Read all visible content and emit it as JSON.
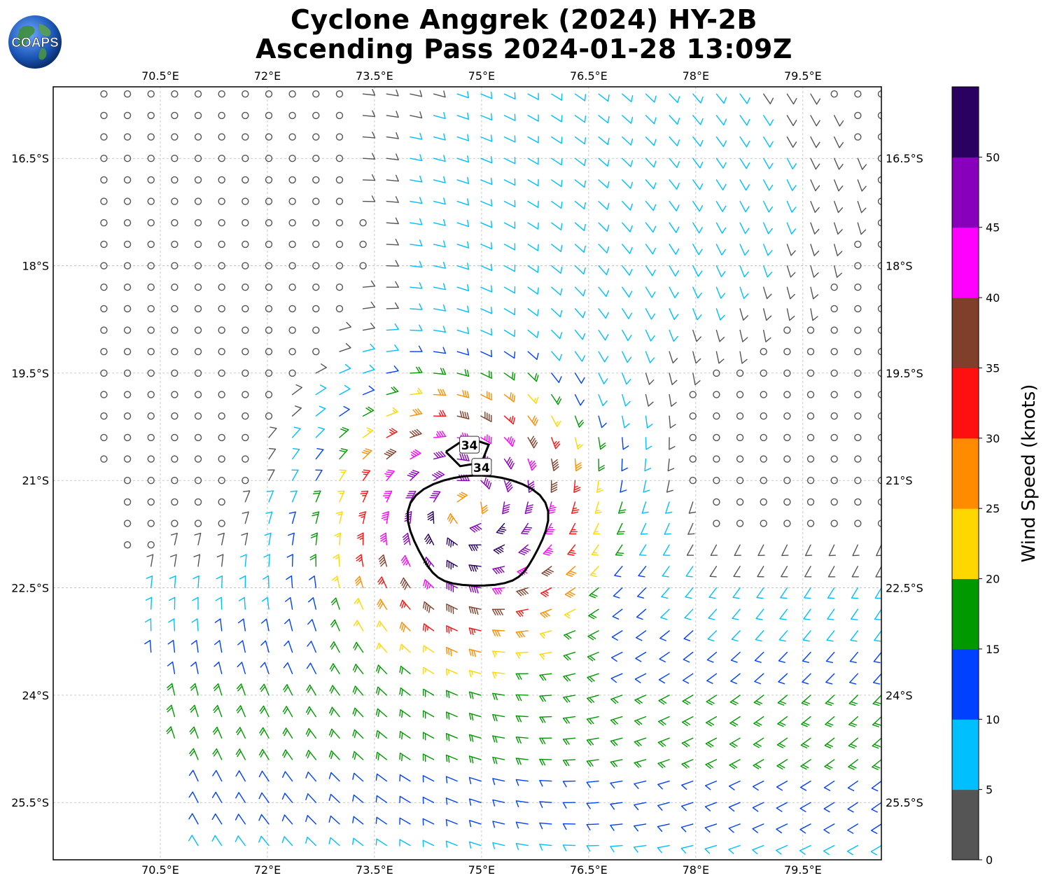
{
  "title": {
    "line1": "Cyclone Anggrek (2024) HY-2B",
    "line2": "Ascending Pass 2024-01-28 13:09Z"
  },
  "logo": {
    "text": "COAPS",
    "icon": "globe-logo"
  },
  "map": {
    "lon_ticks": [
      "70.5°E",
      "72°E",
      "73.5°E",
      "75°E",
      "76.5°E",
      "78°E",
      "79.5°E"
    ],
    "lon_values": [
      70.5,
      72,
      73.5,
      75,
      76.5,
      78,
      79.5
    ],
    "lat_ticks": [
      "16.5°S",
      "18°S",
      "19.5°S",
      "21°S",
      "22.5°S",
      "24°S",
      "25.5°S"
    ],
    "lat_values": [
      -16.5,
      -18,
      -19.5,
      -21,
      -22.5,
      -24,
      -25.5
    ],
    "lon_range": [
      69.0,
      80.6
    ],
    "lat_range": [
      -26.3,
      -15.5
    ],
    "center": {
      "lon": 74.8,
      "lat": -21.4
    },
    "contour_label": "34",
    "contour_value_kt": 34
  },
  "colorbar": {
    "label": "Wind Speed (knots)",
    "ticks": [
      "0",
      "5",
      "10",
      "15",
      "20",
      "25",
      "30",
      "35",
      "40",
      "45",
      "50"
    ],
    "colors": [
      "#555555",
      "#00bfff",
      "#0040ff",
      "#009900",
      "#ffd700",
      "#ff8c00",
      "#ff1010",
      "#7f3f2a",
      "#ff00ff",
      "#8800bb",
      "#2a0060"
    ]
  }
}
